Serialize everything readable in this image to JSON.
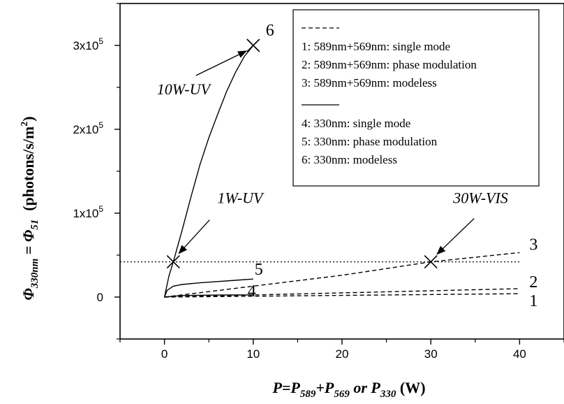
{
  "chart_data": {
    "type": "line",
    "xlabel": {
      "main": "P=P",
      "sub1": "589",
      "plus": "+P",
      "sub2": "569",
      "or": " or ",
      "p": "P",
      "sub3": "330",
      "unit": " (W)"
    },
    "ylabel": {
      "phi1": "Φ",
      "sub1": "330nm",
      "eq": " = ",
      "phi2": "Φ",
      "sub2": "51",
      "unit": "(photons/s/m",
      "sup": "2",
      "close": ")"
    },
    "xlim": [
      -5,
      45
    ],
    "ylim": [
      -50000,
      350000
    ],
    "x_ticks": [
      {
        "value": 0,
        "label": "0"
      },
      {
        "value": 10,
        "label": "10"
      },
      {
        "value": 20,
        "label": "20"
      },
      {
        "value": 30,
        "label": "30"
      },
      {
        "value": 40,
        "label": "40"
      }
    ],
    "y_ticks": [
      {
        "value": 0,
        "mant": "0",
        "exp": ""
      },
      {
        "value": 100000,
        "mant": "1x10",
        "exp": "5"
      },
      {
        "value": 200000,
        "mant": "2x10",
        "exp": "5"
      },
      {
        "value": 300000,
        "mant": "3x10",
        "exp": "5"
      }
    ],
    "series": [
      {
        "label": "1",
        "style": "dashed",
        "points": [
          [
            0,
            0
          ],
          [
            10,
            1000
          ],
          [
            20,
            2000
          ],
          [
            30,
            3000
          ],
          [
            40,
            4000
          ]
        ]
      },
      {
        "label": "2",
        "style": "dashed",
        "points": [
          [
            0,
            0
          ],
          [
            10,
            2500
          ],
          [
            20,
            5000
          ],
          [
            30,
            7500
          ],
          [
            40,
            10000
          ]
        ]
      },
      {
        "label": "3",
        "style": "dashed",
        "points": [
          [
            0,
            0
          ],
          [
            5,
            6500
          ],
          [
            10,
            13000
          ],
          [
            20,
            26000
          ],
          [
            30,
            42000
          ],
          [
            40,
            53000
          ]
        ]
      },
      {
        "label": "4",
        "style": "solid",
        "points": [
          [
            0,
            0
          ],
          [
            2,
            1800
          ],
          [
            4,
            2200
          ],
          [
            6,
            2400
          ],
          [
            8,
            2500
          ],
          [
            10,
            2600
          ]
        ]
      },
      {
        "label": "5",
        "style": "solid",
        "points": [
          [
            0,
            0
          ],
          [
            0.3,
            8000
          ],
          [
            1,
            13000
          ],
          [
            2,
            15000
          ],
          [
            4,
            17000
          ],
          [
            6,
            18500
          ],
          [
            8,
            20000
          ],
          [
            10,
            21500
          ]
        ]
      },
      {
        "label": "6",
        "style": "solid",
        "points": [
          [
            0,
            0
          ],
          [
            0.5,
            25000
          ],
          [
            1,
            42000
          ],
          [
            2,
            80000
          ],
          [
            3,
            120000
          ],
          [
            4,
            158000
          ],
          [
            5,
            190000
          ],
          [
            6,
            218000
          ],
          [
            7,
            245000
          ],
          [
            8,
            268000
          ],
          [
            9,
            287000
          ],
          [
            10,
            300000
          ]
        ]
      }
    ],
    "reference_line": {
      "y": 42000,
      "x_from": -5,
      "x_to": 40,
      "style": "dotted"
    },
    "markers": [
      {
        "x": 1,
        "y": 42000,
        "symbol": "x"
      },
      {
        "x": 10,
        "y": 300000,
        "symbol": "x"
      },
      {
        "x": 30,
        "y": 42000,
        "symbol": "x"
      }
    ],
    "annotations": [
      {
        "text": "10W-UV",
        "target": [
          10,
          300000
        ]
      },
      {
        "text": "1W-UV",
        "target": [
          1,
          42000
        ]
      },
      {
        "text": "30W-VIS",
        "target": [
          30,
          42000
        ]
      }
    ],
    "legend": {
      "position": "top-right",
      "groups": [
        {
          "style": "dashed",
          "entries": [
            "1:  589nm+569nm: single mode",
            "2:  589nm+569nm: phase modulation",
            "3:  589nm+569nm: modeless"
          ]
        },
        {
          "style": "solid",
          "entries": [
            "4:  330nm: single mode",
            "5:  330nm: phase modulation",
            "6:  330nm: modeless"
          ]
        }
      ]
    },
    "grid": false
  }
}
